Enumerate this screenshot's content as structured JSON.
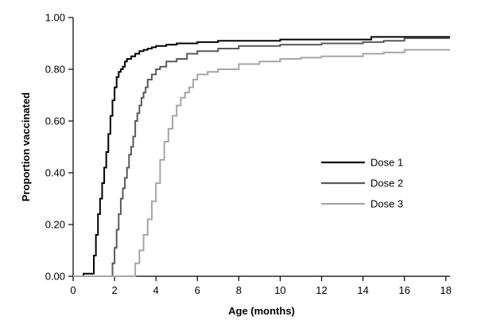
{
  "chart_data": {
    "type": "line",
    "step": true,
    "xlabel": "Age (months)",
    "ylabel": "Proportion vaccinated",
    "xlim": [
      0,
      18.2
    ],
    "ylim": [
      0,
      1.0
    ],
    "x_ticks": [
      0,
      2,
      4,
      6,
      8,
      10,
      12,
      14,
      16,
      18
    ],
    "y_ticks": [
      0.0,
      0.2,
      0.4,
      0.6,
      0.8,
      1.0
    ],
    "x_tick_labels": [
      "0",
      "2",
      "4",
      "6",
      "8",
      "10",
      "12",
      "14",
      "16",
      "18"
    ],
    "y_tick_labels": [
      "0.00",
      "0.20",
      "0.40",
      "0.60",
      "0.80",
      "1.00"
    ],
    "grid": false,
    "legend_position": "right",
    "series": [
      {
        "name": "Dose 1",
        "color": "#000000",
        "x": [
          0,
          0.5,
          0.9,
          1.0,
          1.1,
          1.2,
          1.3,
          1.4,
          1.5,
          1.6,
          1.7,
          1.8,
          1.9,
          2.0,
          2.1,
          2.2,
          2.3,
          2.4,
          2.5,
          2.6,
          2.8,
          3.0,
          3.2,
          3.4,
          3.6,
          3.8,
          4.0,
          4.5,
          5.0,
          6.0,
          7.0,
          8.0,
          10.0,
          12.0,
          14.4,
          15.0,
          18.2
        ],
        "y": [
          0.0,
          0.01,
          0.01,
          0.08,
          0.16,
          0.24,
          0.3,
          0.36,
          0.42,
          0.48,
          0.55,
          0.62,
          0.68,
          0.73,
          0.77,
          0.79,
          0.8,
          0.81,
          0.83,
          0.84,
          0.85,
          0.86,
          0.87,
          0.875,
          0.88,
          0.885,
          0.89,
          0.895,
          0.9,
          0.905,
          0.91,
          0.91,
          0.915,
          0.915,
          0.925,
          0.925,
          0.925
        ]
      },
      {
        "name": "Dose 2",
        "color": "#595959",
        "x": [
          0,
          1.8,
          1.9,
          2.0,
          2.1,
          2.2,
          2.3,
          2.4,
          2.5,
          2.6,
          2.7,
          2.8,
          2.9,
          3.0,
          3.1,
          3.2,
          3.3,
          3.4,
          3.5,
          3.6,
          3.8,
          4.0,
          4.2,
          4.5,
          5.0,
          5.5,
          6.0,
          7.0,
          8.0,
          10.0,
          12.0,
          14.0,
          15.0,
          16.0,
          18.2
        ],
        "y": [
          0.0,
          0.0,
          0.05,
          0.11,
          0.18,
          0.24,
          0.3,
          0.34,
          0.38,
          0.42,
          0.47,
          0.5,
          0.54,
          0.6,
          0.63,
          0.66,
          0.69,
          0.71,
          0.73,
          0.76,
          0.78,
          0.8,
          0.81,
          0.83,
          0.84,
          0.86,
          0.87,
          0.88,
          0.89,
          0.895,
          0.9,
          0.905,
          0.91,
          0.92,
          0.92
        ]
      },
      {
        "name": "Dose 3",
        "color": "#a6a6a6",
        "x": [
          0,
          2.8,
          3.0,
          3.2,
          3.4,
          3.6,
          3.8,
          4.0,
          4.2,
          4.4,
          4.6,
          4.8,
          5.0,
          5.2,
          5.4,
          5.6,
          5.8,
          6.0,
          6.5,
          7.0,
          8.0,
          9.0,
          10.0,
          11.0,
          12.0,
          14.0,
          15.0,
          16.0,
          18.2
        ],
        "y": [
          0.0,
          0.0,
          0.05,
          0.1,
          0.16,
          0.22,
          0.29,
          0.36,
          0.45,
          0.52,
          0.57,
          0.62,
          0.66,
          0.69,
          0.71,
          0.73,
          0.76,
          0.78,
          0.79,
          0.8,
          0.82,
          0.83,
          0.84,
          0.845,
          0.85,
          0.86,
          0.865,
          0.875,
          0.875
        ]
      }
    ]
  }
}
